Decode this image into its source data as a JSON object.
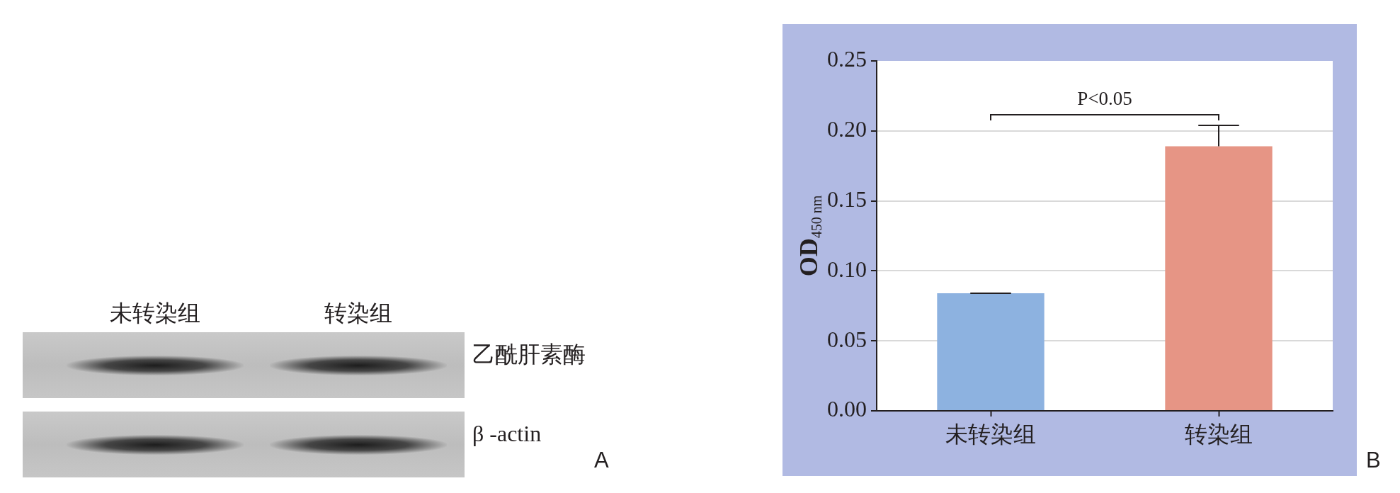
{
  "chart_data": [
    {
      "type": "other",
      "categories": [
        "未转染组",
        "转染组"
      ],
      "y_categories": [
        "乙酰肝素酶",
        "β -actin"
      ],
      "annotations": [
        "A"
      ]
    },
    {
      "type": "bar",
      "categories": [
        "未转染组",
        "转染组"
      ],
      "values": [
        0.084,
        0.189
      ],
      "colors": [
        "#8db2e0",
        "#e69585"
      ],
      "errors": [
        [
          0.084,
          0.084
        ],
        [
          0.189,
          0.204
        ]
      ],
      "ylabel": "OD$_{450 nm}$",
      "ylim": [
        0,
        0.25
      ],
      "yticks": [
        {
          "value": 0,
          "label": "0.00"
        },
        0.05,
        {
          "value": 0.1,
          "label": "0.10"
        },
        0.15,
        {
          "value": 0.2,
          "label": "0.20"
        },
        0.25
      ],
      "grid": "y",
      "annotations": [
        "P<0.05",
        "B"
      ]
    }
  ]
}
